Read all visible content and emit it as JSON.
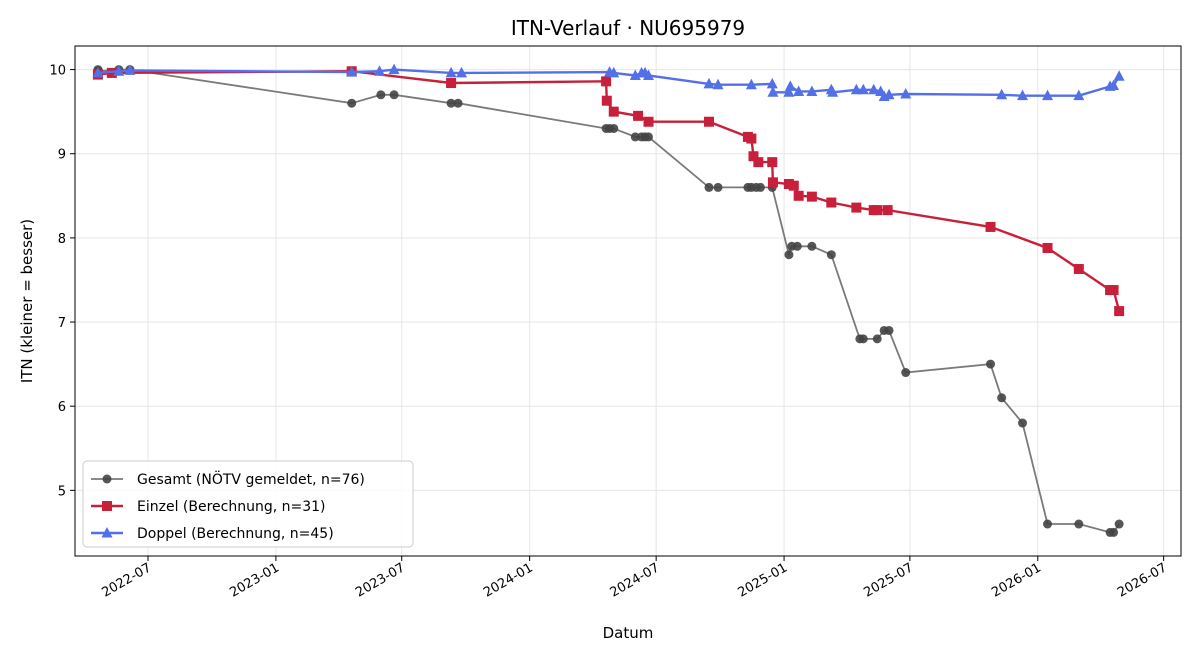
{
  "chart_data": {
    "type": "line",
    "title": "ITN-Verlauf · NU695979",
    "xlabel": "Datum",
    "ylabel": "ITN  (kleiner = besser)",
    "xlim": [
      "2022-03-18",
      "2026-07-26"
    ],
    "ylim": [
      4.22,
      10.28
    ],
    "xticks": [
      "2022-07-01",
      "2023-01-01",
      "2023-07-01",
      "2024-01-01",
      "2024-07-01",
      "2025-01-01",
      "2025-07-01",
      "2026-01-01",
      "2026-07-01"
    ],
    "xtick_labels": [
      "2022-07",
      "2023-01",
      "2023-07",
      "2024-01",
      "2024-07",
      "2025-01",
      "2025-07",
      "2026-01",
      "2026-07"
    ],
    "yticks": [
      5,
      6,
      7,
      8,
      9,
      10
    ],
    "ytick_labels": [
      "5",
      "6",
      "7",
      "8",
      "9",
      "10"
    ],
    "grid": true,
    "legend_position": "lower-left",
    "series": [
      {
        "name": "Gesamt (NÖTV gemeldet, n=76)",
        "color": "#444444",
        "marker": "circle",
        "points": [
          [
            "2022-04-20",
            10.0
          ],
          [
            "2022-04-21",
            9.98
          ],
          [
            "2022-05-20",
            10.0
          ],
          [
            "2022-06-05",
            10.0
          ],
          [
            "2023-04-20",
            9.6
          ],
          [
            "2023-06-01",
            9.7
          ],
          [
            "2023-06-20",
            9.7
          ],
          [
            "2023-09-10",
            9.6
          ],
          [
            "2023-09-20",
            9.6
          ],
          [
            "2024-04-20",
            9.3
          ],
          [
            "2024-04-25",
            9.3
          ],
          [
            "2024-05-01",
            9.3
          ],
          [
            "2024-06-01",
            9.2
          ],
          [
            "2024-06-10",
            9.2
          ],
          [
            "2024-06-15",
            9.2
          ],
          [
            "2024-06-20",
            9.2
          ],
          [
            "2024-09-15",
            8.6
          ],
          [
            "2024-09-28",
            8.6
          ],
          [
            "2024-11-10",
            8.6
          ],
          [
            "2024-11-15",
            8.6
          ],
          [
            "2024-11-22",
            8.6
          ],
          [
            "2024-11-28",
            8.6
          ],
          [
            "2024-12-15",
            8.6
          ],
          [
            "2025-01-08",
            7.8
          ],
          [
            "2025-01-12",
            7.9
          ],
          [
            "2025-01-20",
            7.9
          ],
          [
            "2025-02-10",
            7.9
          ],
          [
            "2025-03-10",
            7.8
          ],
          [
            "2025-04-20",
            6.8
          ],
          [
            "2025-04-25",
            6.8
          ],
          [
            "2025-05-15",
            6.8
          ],
          [
            "2025-05-25",
            6.9
          ],
          [
            "2025-06-01",
            6.9
          ],
          [
            "2025-06-25",
            6.4
          ],
          [
            "2025-10-25",
            6.5
          ],
          [
            "2025-11-10",
            6.1
          ],
          [
            "2025-12-10",
            5.8
          ],
          [
            "2026-01-15",
            4.6
          ],
          [
            "2026-03-01",
            4.6
          ],
          [
            "2026-04-15",
            4.5
          ],
          [
            "2026-04-20",
            4.5
          ],
          [
            "2026-04-28",
            4.6
          ]
        ]
      },
      {
        "name": "Einzel (Berechnung, n=31)",
        "color": "#c8203a",
        "marker": "square",
        "points": [
          [
            "2022-04-20",
            9.94
          ],
          [
            "2022-05-10",
            9.96
          ],
          [
            "2023-04-20",
            9.98
          ],
          [
            "2023-09-10",
            9.84
          ],
          [
            "2024-04-20",
            9.86
          ],
          [
            "2024-04-21",
            9.63
          ],
          [
            "2024-05-01",
            9.5
          ],
          [
            "2024-06-05",
            9.45
          ],
          [
            "2024-06-20",
            9.38
          ],
          [
            "2024-09-15",
            9.38
          ],
          [
            "2024-11-10",
            9.2
          ],
          [
            "2024-11-15",
            9.18
          ],
          [
            "2024-11-18",
            8.97
          ],
          [
            "2024-11-25",
            8.9
          ],
          [
            "2024-12-15",
            8.9
          ],
          [
            "2024-12-16",
            8.66
          ],
          [
            "2025-01-08",
            8.64
          ],
          [
            "2025-01-15",
            8.62
          ],
          [
            "2025-01-22",
            8.5
          ],
          [
            "2025-02-10",
            8.49
          ],
          [
            "2025-03-10",
            8.42
          ],
          [
            "2025-04-15",
            8.36
          ],
          [
            "2025-05-10",
            8.33
          ],
          [
            "2025-05-15",
            8.33
          ],
          [
            "2025-05-30",
            8.33
          ],
          [
            "2025-10-25",
            8.13
          ],
          [
            "2026-01-15",
            7.88
          ],
          [
            "2026-03-01",
            7.63
          ],
          [
            "2026-04-15",
            7.38
          ],
          [
            "2026-04-20",
            7.38
          ],
          [
            "2026-04-28",
            7.13
          ]
        ]
      },
      {
        "name": "Doppel (Berechnung, n=45)",
        "color": "#5470e8",
        "marker": "triangle",
        "points": [
          [
            "2022-04-20",
            9.96
          ],
          [
            "2022-05-20",
            9.98
          ],
          [
            "2022-06-05",
            9.99
          ],
          [
            "2023-04-20",
            9.97
          ],
          [
            "2023-05-30",
            9.98
          ],
          [
            "2023-06-20",
            10.0
          ],
          [
            "2023-09-10",
            9.96
          ],
          [
            "2023-09-25",
            9.96
          ],
          [
            "2024-04-25",
            9.97
          ],
          [
            "2024-05-01",
            9.96
          ],
          [
            "2024-06-01",
            9.93
          ],
          [
            "2024-06-10",
            9.96
          ],
          [
            "2024-06-15",
            9.96
          ],
          [
            "2024-06-20",
            9.93
          ],
          [
            "2024-09-15",
            9.83
          ],
          [
            "2024-09-28",
            9.82
          ],
          [
            "2024-11-15",
            9.82
          ],
          [
            "2024-12-15",
            9.83
          ],
          [
            "2024-12-16",
            9.73
          ],
          [
            "2025-01-08",
            9.73
          ],
          [
            "2025-01-10",
            9.8
          ],
          [
            "2025-01-22",
            9.74
          ],
          [
            "2025-02-10",
            9.74
          ],
          [
            "2025-03-10",
            9.76
          ],
          [
            "2025-03-12",
            9.73
          ],
          [
            "2025-04-15",
            9.76
          ],
          [
            "2025-04-25",
            9.76
          ],
          [
            "2025-05-10",
            9.76
          ],
          [
            "2025-05-20",
            9.74
          ],
          [
            "2025-05-25",
            9.68
          ],
          [
            "2025-06-01",
            9.7
          ],
          [
            "2025-06-25",
            9.71
          ],
          [
            "2025-11-10",
            9.7
          ],
          [
            "2025-12-10",
            9.69
          ],
          [
            "2026-01-15",
            9.69
          ],
          [
            "2026-03-01",
            9.69
          ],
          [
            "2026-04-15",
            9.8
          ],
          [
            "2026-04-20",
            9.81
          ],
          [
            "2026-04-28",
            9.92
          ]
        ]
      }
    ]
  }
}
